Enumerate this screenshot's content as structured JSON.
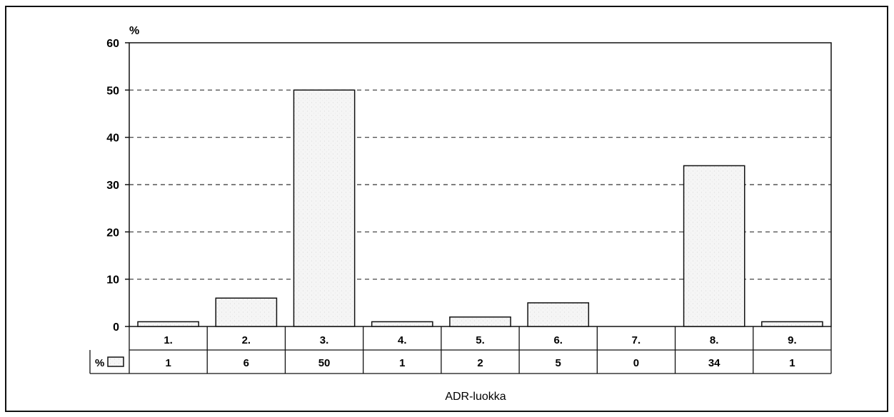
{
  "chart_data": {
    "type": "bar",
    "ylabel": "%",
    "xlabel": "ADR-luokka",
    "ylim": [
      0,
      60
    ],
    "yticks": [
      0,
      10,
      20,
      30,
      40,
      50,
      60
    ],
    "grid": "horizontal-dashed",
    "categories": [
      "1.",
      "2.",
      "3.",
      "4.",
      "5.",
      "6.",
      "7.",
      "8.",
      "9."
    ],
    "series": [
      {
        "name": "%",
        "values": [
          1,
          6,
          50,
          1,
          2,
          5,
          0,
          34,
          1
        ]
      }
    ],
    "data_table": {
      "row_label": "%",
      "values": [
        "1",
        "6",
        "50",
        "1",
        "2",
        "5",
        "0",
        "34",
        "1"
      ]
    },
    "colors": {
      "bar_fill": "#f4f4f4",
      "bar_stroke": "#111111",
      "grid": "#333333"
    }
  }
}
